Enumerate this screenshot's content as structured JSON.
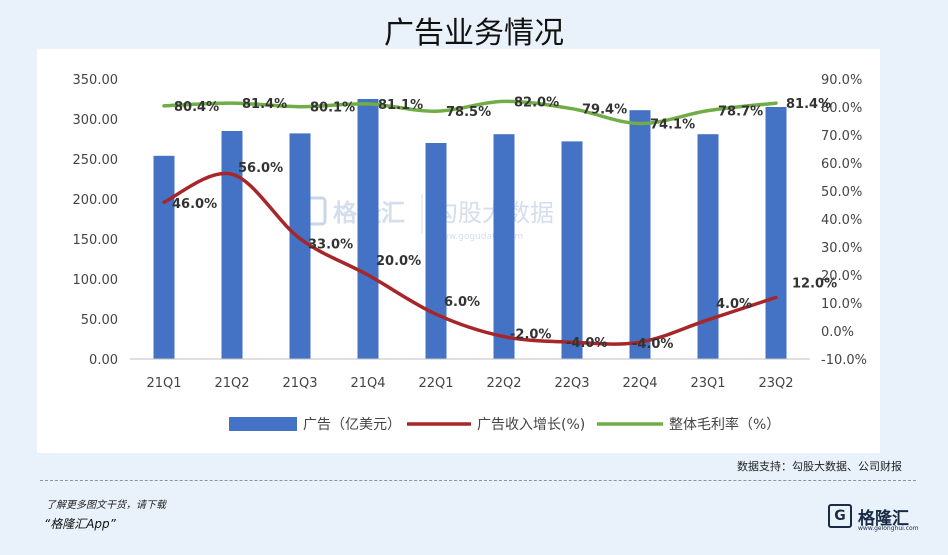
{
  "title": "广告业务情况",
  "source": "数据支持：勾股大数据、公司财报",
  "promo": {
    "line1": "了解更多图文干货，请下载",
    "line2": "“格隆汇App”"
  },
  "logo": {
    "glyph": "G",
    "name": "格隆汇",
    "url": "www.gelonghui.com"
  },
  "watermark": {
    "name1": "格隆汇",
    "name2": "勾股大数据",
    "url": "www.gogudata.com"
  },
  "colors": {
    "bar": "#4472c4",
    "growth": "#a6262a",
    "margin": "#70ad47"
  },
  "chart_data": {
    "type": "bar",
    "categories": [
      "21Q1",
      "21Q2",
      "21Q3",
      "21Q4",
      "22Q1",
      "22Q2",
      "22Q3",
      "22Q4",
      "23Q1",
      "23Q2"
    ],
    "ylim": [
      0,
      350
    ],
    "yticks": [
      "0.00",
      "50.00",
      "100.00",
      "150.00",
      "200.00",
      "250.00",
      "300.00",
      "350.00"
    ],
    "y2lim": [
      -10,
      90
    ],
    "y2ticks": [
      "-10.0%",
      "0.0%",
      "10.0%",
      "20.0%",
      "30.0%",
      "40.0%",
      "50.0%",
      "60.0%",
      "70.0%",
      "80.0%",
      "90.0%"
    ],
    "series": [
      {
        "name": "广告（亿美元）",
        "kind": "bar",
        "axis": "left",
        "values": [
          254,
          285,
          282,
          325,
          270,
          281,
          272,
          311,
          281,
          315
        ]
      },
      {
        "name": "广告收入增长(%)",
        "kind": "line",
        "axis": "right",
        "values": [
          46.0,
          56.0,
          33.0,
          20.0,
          6.0,
          -2.0,
          -4.0,
          -4.0,
          4.0,
          12.0
        ],
        "labels": [
          "46.0%",
          "56.0%",
          "33.0%",
          "20.0%",
          "6.0%",
          "-2.0%",
          "-4.0%",
          "-4.0%",
          "4.0%",
          "12.0%"
        ]
      },
      {
        "name": "整体毛利率（%）",
        "kind": "line",
        "axis": "right",
        "values": [
          80.4,
          81.4,
          80.1,
          81.1,
          78.5,
          82.0,
          79.4,
          74.1,
          78.7,
          81.4
        ],
        "labels": [
          "80.4%",
          "81.4%",
          "80.1%",
          "81.1%",
          "78.5%",
          "82.0%",
          "79.4%",
          "74.1%",
          "78.7%",
          "81.4%"
        ]
      }
    ],
    "grid": false,
    "legend": "bottom"
  }
}
